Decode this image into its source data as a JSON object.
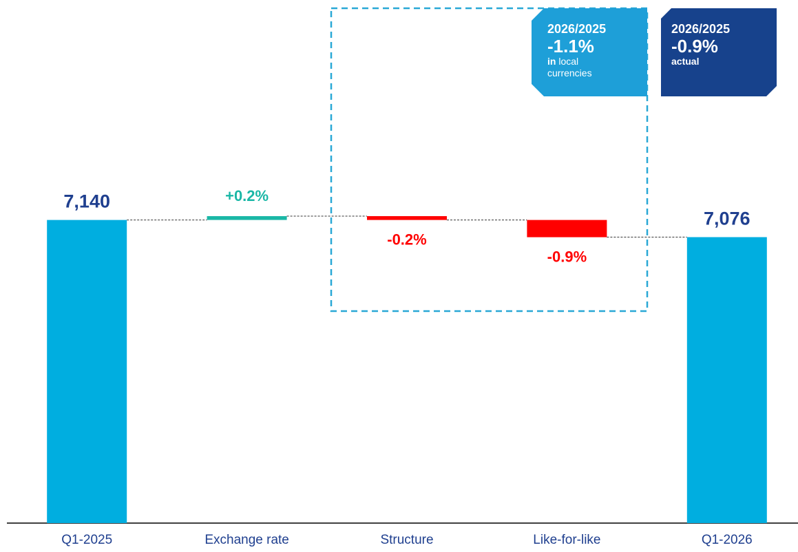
{
  "chart_data": {
    "type": "waterfall",
    "categories": [
      "Q1-2025",
      "Exchange rate",
      "Structure",
      "Like-for-like",
      "Q1-2026"
    ],
    "values": [
      7140,
      0.2,
      -0.2,
      -0.9,
      7076
    ],
    "value_labels": [
      "7,140",
      "+0.2%",
      "-0.2%",
      "-0.9%",
      "7,076"
    ],
    "totals": [
      true,
      false,
      false,
      false,
      true
    ],
    "total_color": "#00aee0",
    "increase_color": "#1ab7a6",
    "decrease_color": "#ff0000",
    "total_label_color": "#1f3f8f",
    "ylim": [
      6010,
      7960
    ],
    "annotations": [
      {
        "period": "2026/2025",
        "change": "-1.1%",
        "note_bold": "in",
        "note": "local currencies",
        "color": "#1e9fd8"
      },
      {
        "period": "2026/2025",
        "change": "-0.9%",
        "note_bold": "actual",
        "color": "#17428c"
      }
    ]
  }
}
